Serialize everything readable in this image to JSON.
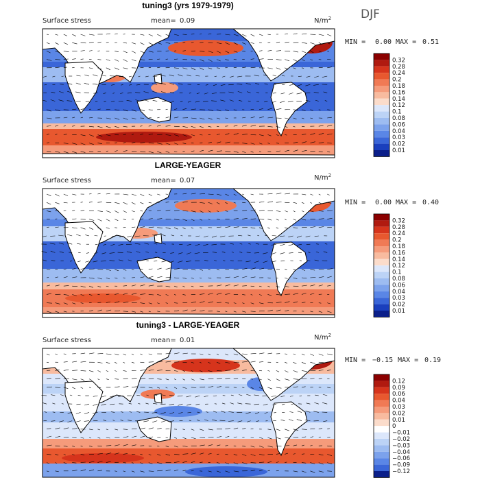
{
  "season": "DJF",
  "chart_data": [
    {
      "type": "heatmap",
      "title": "tuning3 (yrs 1979-1979)",
      "variable": "Surface stress",
      "mean_label": "mean=",
      "mean": "0.09",
      "units": "N/m",
      "units_exp": "2",
      "min_label": "MIN =",
      "min": "0.00",
      "max_label": "MAX =",
      "max": "0.51",
      "levels": [
        "0.32",
        "0.28",
        "0.24",
        "0.2",
        "0.18",
        "0.16",
        "0.14",
        "0.12",
        "0.1",
        "0.08",
        "0.06",
        "0.04",
        "0.03",
        "0.02",
        "0.01"
      ],
      "colors": [
        "#8b0000",
        "#b01a10",
        "#d6341c",
        "#e8582f",
        "#f07a55",
        "#f59b7b",
        "#f8bb9f",
        "#fbdccb",
        "#dce7fb",
        "#bcd3f6",
        "#9dbcf1",
        "#7ca2ec",
        "#5a86e6",
        "#3a66d8",
        "#1a3fbd",
        "#0b1f8a"
      ]
    },
    {
      "type": "heatmap",
      "title": "LARGE-YEAGER",
      "variable": "Surface stress",
      "mean_label": "mean=",
      "mean": "0.07",
      "units": "N/m",
      "units_exp": "2",
      "min_label": "MIN =",
      "min": "0.00",
      "max_label": "MAX =",
      "max": "0.40",
      "levels": [
        "0.32",
        "0.28",
        "0.24",
        "0.2",
        "0.18",
        "0.16",
        "0.14",
        "0.12",
        "0.1",
        "0.08",
        "0.06",
        "0.04",
        "0.03",
        "0.02",
        "0.01"
      ],
      "colors": [
        "#8b0000",
        "#b01a10",
        "#d6341c",
        "#e8582f",
        "#f07a55",
        "#f59b7b",
        "#f8bb9f",
        "#fbdccb",
        "#dce7fb",
        "#bcd3f6",
        "#9dbcf1",
        "#7ca2ec",
        "#5a86e6",
        "#3a66d8",
        "#1a3fbd",
        "#0b1f8a"
      ]
    },
    {
      "type": "heatmap",
      "title": "tuning3 - LARGE-YEAGER",
      "variable": "Surface stress",
      "mean_label": "mean=",
      "mean": "0.01",
      "units": "N/m",
      "units_exp": "2",
      "min_label": "MIN =",
      "min": "−0.15",
      "max_label": "MAX =",
      "max": "0.19",
      "levels": [
        "0.12",
        "0.09",
        "0.06",
        "0.04",
        "0.03",
        "0.02",
        "0.01",
        "0",
        "−0.01",
        "−0.02",
        "−0.03",
        "−0.04",
        "−0.06",
        "−0.09",
        "−0.12"
      ],
      "colors": [
        "#8b0000",
        "#b01a10",
        "#d6341c",
        "#e8582f",
        "#f07a55",
        "#f59b7b",
        "#f8bb9f",
        "#fbdccb",
        "#ffffff",
        "#dce7fb",
        "#bcd3f6",
        "#9dbcf1",
        "#7ca2ec",
        "#5a86e6",
        "#3a66d8",
        "#0b1f8a"
      ]
    }
  ]
}
